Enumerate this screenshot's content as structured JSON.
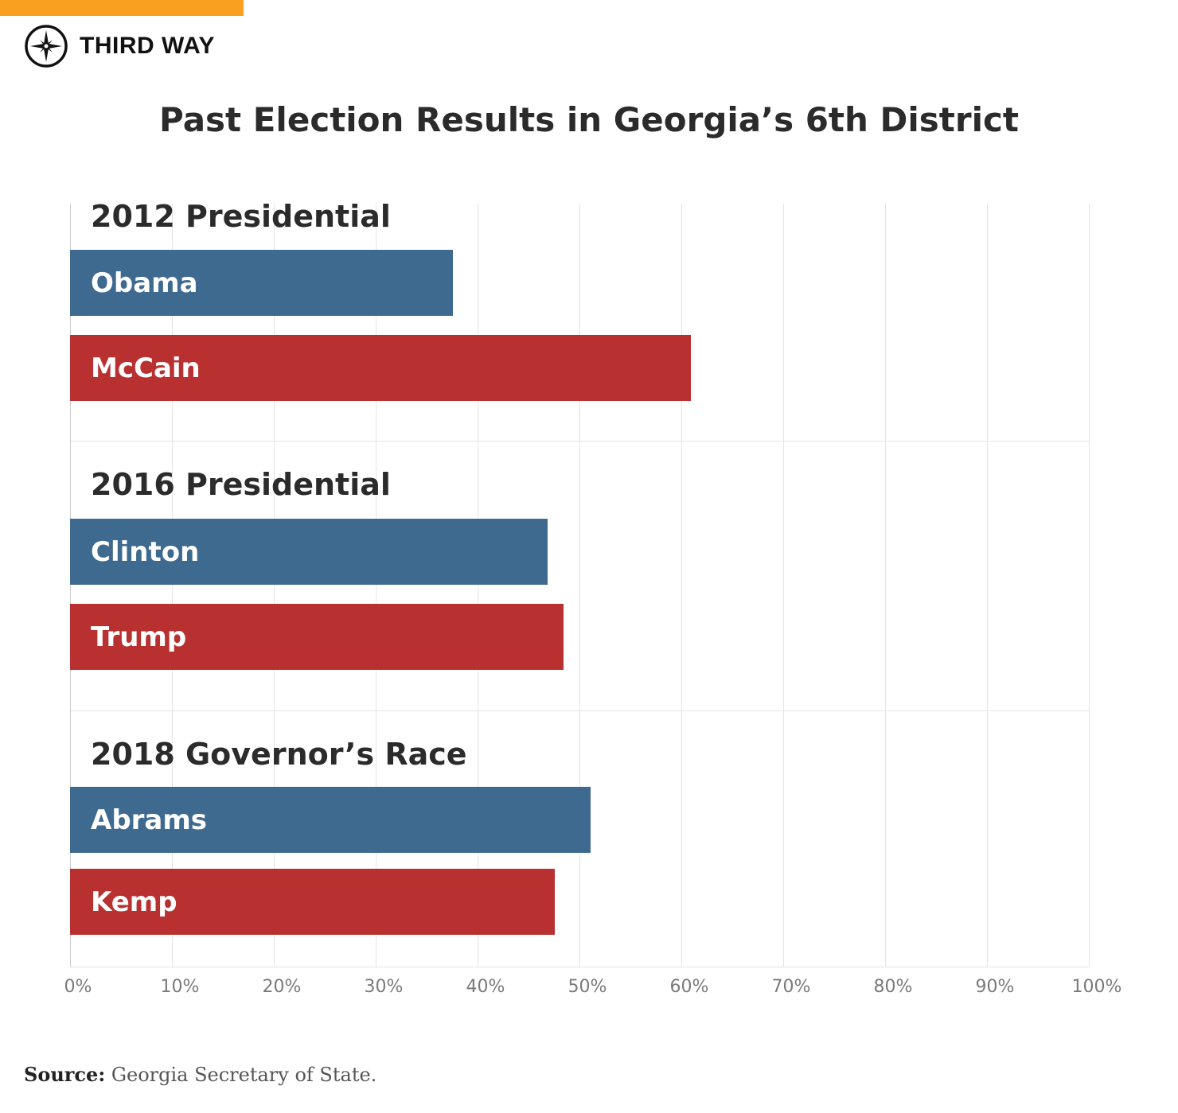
{
  "header": {
    "brand": "THIRD WAY",
    "logo_icon": "compass-star-icon",
    "accent_color": "#f9a021"
  },
  "chart_data": {
    "type": "bar",
    "orientation": "horizontal",
    "title": "Past Election Results in Georgia’s 6th District",
    "xlim": [
      0,
      100
    ],
    "x_ticks": [
      "0%",
      "10%",
      "20%",
      "30%",
      "40%",
      "50%",
      "60%",
      "70%",
      "80%",
      "90%",
      "100%"
    ],
    "grid": true,
    "groups": [
      {
        "label": "2012 Presidential",
        "bars": [
          {
            "name": "Obama",
            "value": 37.6,
            "party": "Democrat"
          },
          {
            "name": "McCain",
            "value": 60.9,
            "party": "Republican"
          }
        ]
      },
      {
        "label": "2016 Presidential",
        "bars": [
          {
            "name": "Clinton",
            "value": 46.9,
            "party": "Democrat"
          },
          {
            "name": "Trump",
            "value": 48.4,
            "party": "Republican"
          }
        ]
      },
      {
        "label": "2018 Governor’s Race",
        "bars": [
          {
            "name": "Abrams",
            "value": 51.1,
            "party": "Democrat"
          },
          {
            "name": "Kemp",
            "value": 47.6,
            "party": "Republican"
          }
        ]
      }
    ],
    "colors": {
      "Democrat": "#3f6a8f",
      "Republican": "#b83030"
    }
  },
  "source": {
    "label": "Source:",
    "text": " Georgia Secretary of State."
  }
}
